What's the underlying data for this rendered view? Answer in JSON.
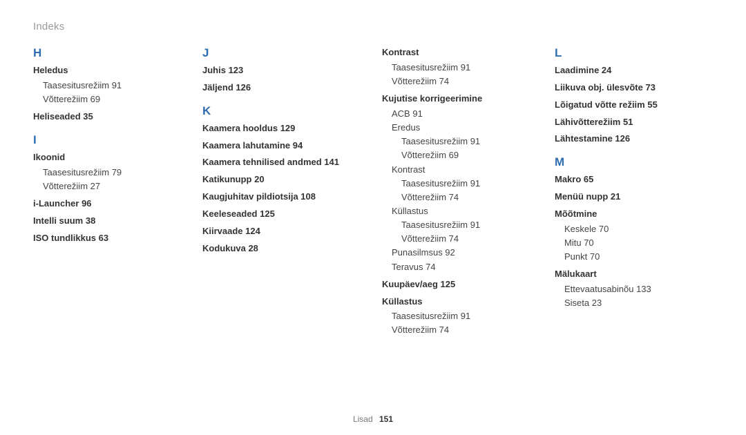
{
  "header": {
    "title": "Indeks"
  },
  "footer": {
    "section": "Lisad",
    "page": "151"
  },
  "columns": [
    {
      "width_class": "col1",
      "blocks": [
        {
          "type": "letter",
          "first": true,
          "text": "H"
        },
        {
          "type": "entry",
          "text": "Heledus"
        },
        {
          "type": "sub",
          "text": "Taasesitusrežiim  91"
        },
        {
          "type": "sub",
          "text": "Võtterežiim  69"
        },
        {
          "type": "entry",
          "text": "Heliseaded  35"
        },
        {
          "type": "letter",
          "text": "I"
        },
        {
          "type": "entry",
          "text": "Ikoonid"
        },
        {
          "type": "sub",
          "text": "Taasesitusrežiim  79"
        },
        {
          "type": "sub",
          "text": "Võtterežiim  27"
        },
        {
          "type": "entry",
          "text": "i-Launcher  96"
        },
        {
          "type": "entry",
          "text": "Intelli suum  38"
        },
        {
          "type": "entry",
          "text": "ISO tundlikkus  63"
        }
      ]
    },
    {
      "width_class": "col2",
      "blocks": [
        {
          "type": "letter",
          "first": true,
          "text": "J"
        },
        {
          "type": "entry",
          "text": "Juhis  123"
        },
        {
          "type": "entry",
          "text": "Jäljend  126"
        },
        {
          "type": "letter",
          "text": "K"
        },
        {
          "type": "entry",
          "text": "Kaamera hooldus  129"
        },
        {
          "type": "entry",
          "text": "Kaamera lahutamine  94"
        },
        {
          "type": "entry",
          "text": "Kaamera tehnilised andmed  141"
        },
        {
          "type": "entry",
          "text": "Katikunupp  20"
        },
        {
          "type": "entry",
          "text": "Kaugjuhitav pildiotsija  108"
        },
        {
          "type": "entry",
          "text": "Keeleseaded  125"
        },
        {
          "type": "entry",
          "text": "Kiirvaade  124"
        },
        {
          "type": "entry",
          "text": "Kodukuva  28"
        }
      ]
    },
    {
      "width_class": "col3",
      "blocks": [
        {
          "type": "entry",
          "first": true,
          "text": "Kontrast"
        },
        {
          "type": "sub",
          "text": "Taasesitusrežiim  91"
        },
        {
          "type": "sub",
          "text": "Võtterežiim  74"
        },
        {
          "type": "entry",
          "text": "Kujutise korrigeerimine"
        },
        {
          "type": "sub",
          "text": "ACB  91"
        },
        {
          "type": "sub",
          "text": "Eredus"
        },
        {
          "type": "subsub",
          "text": "Taasesitusrežiim  91"
        },
        {
          "type": "subsub",
          "text": "Võtterežiim  69"
        },
        {
          "type": "sub",
          "text": "Kontrast"
        },
        {
          "type": "subsub",
          "text": "Taasesitusrežiim  91"
        },
        {
          "type": "subsub",
          "text": "Võtterežiim  74"
        },
        {
          "type": "sub",
          "text": "Küllastus"
        },
        {
          "type": "subsub",
          "text": "Taasesitusrežiim  91"
        },
        {
          "type": "subsub",
          "text": "Võtterežiim  74"
        },
        {
          "type": "sub",
          "text": "Punasilmsus  92"
        },
        {
          "type": "sub",
          "text": "Teravus  74"
        },
        {
          "type": "entry",
          "text": "Kuupäev/aeg  125"
        },
        {
          "type": "entry",
          "text": "Küllastus"
        },
        {
          "type": "sub",
          "text": "Taasesitusrežiim  91"
        },
        {
          "type": "sub",
          "text": "Võtterežiim  74"
        }
      ]
    },
    {
      "width_class": "col4",
      "blocks": [
        {
          "type": "letter",
          "first": true,
          "text": "L"
        },
        {
          "type": "entry",
          "text": "Laadimine  24"
        },
        {
          "type": "entry",
          "text": "Liikuva obj. ülesvõte  73"
        },
        {
          "type": "entry",
          "text": "Lõigatud võtte režiim  55"
        },
        {
          "type": "entry",
          "text": "Lähivõtterežiim  51"
        },
        {
          "type": "entry",
          "text": "Lähtestamine  126"
        },
        {
          "type": "letter",
          "text": "M"
        },
        {
          "type": "entry",
          "text": "Makro  65"
        },
        {
          "type": "entry",
          "text": "Menüü nupp  21"
        },
        {
          "type": "entry",
          "text": "Mõõtmine"
        },
        {
          "type": "sub",
          "text": "Keskele  70"
        },
        {
          "type": "sub",
          "text": "Mitu  70"
        },
        {
          "type": "sub",
          "text": "Punkt  70"
        },
        {
          "type": "entry",
          "text": "Mälukaart"
        },
        {
          "type": "sub",
          "text": "Ettevaatusabinõu  133"
        },
        {
          "type": "sub",
          "text": "Siseta  23"
        }
      ]
    }
  ]
}
